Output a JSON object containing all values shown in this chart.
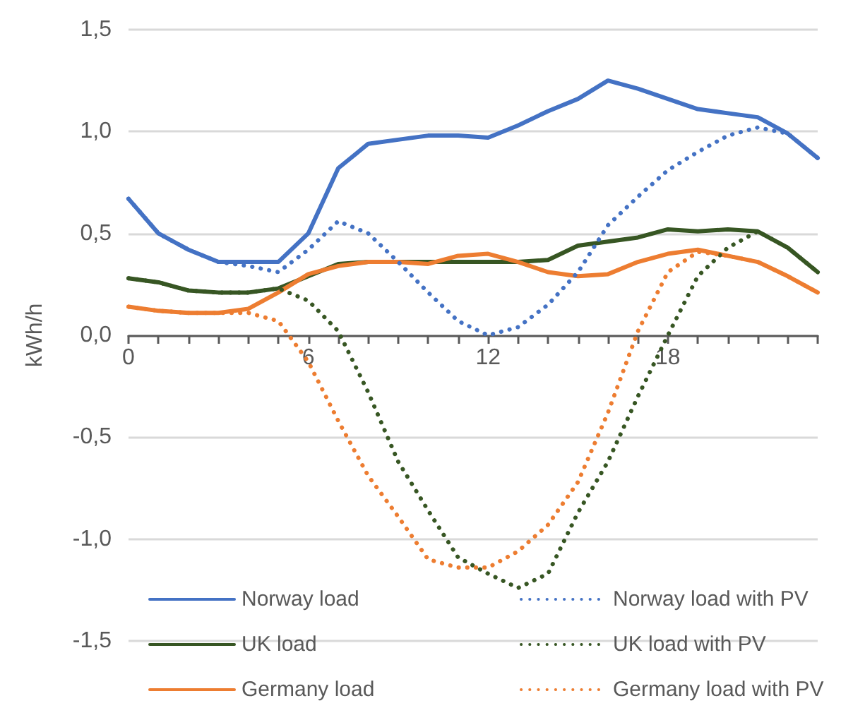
{
  "chart_data": {
    "type": "line",
    "ylabel": "kWh/h",
    "xlim": [
      0,
      23
    ],
    "xticks": [
      0,
      {
        "value": 1,
        "label": null
      },
      {
        "value": 2,
        "label": null
      },
      {
        "value": 3,
        "label": null
      },
      {
        "value": 4,
        "label": null
      },
      {
        "value": 5,
        "label": null
      },
      6,
      {
        "value": 7,
        "label": null
      },
      {
        "value": 8,
        "label": null
      },
      {
        "value": 9,
        "label": null
      },
      {
        "value": 10,
        "label": null
      },
      {
        "value": 11,
        "label": null
      },
      12,
      {
        "value": 13,
        "label": null
      },
      {
        "value": 14,
        "label": null
      },
      {
        "value": 15,
        "label": null
      },
      {
        "value": 16,
        "label": null
      },
      {
        "value": 17,
        "label": null
      },
      18,
      {
        "value": 19,
        "label": null
      },
      {
        "value": 20,
        "label": null
      },
      {
        "value": 21,
        "label": null
      },
      {
        "value": 22,
        "label": null
      },
      {
        "value": 23,
        "label": null
      }
    ],
    "x": [
      0,
      1,
      2,
      3,
      4,
      5,
      6,
      7,
      8,
      9,
      10,
      11,
      12,
      13,
      14,
      15,
      16,
      17,
      18,
      19,
      20,
      21,
      22,
      23
    ],
    "ylim": [
      -1.5,
      1.5
    ],
    "yticks": [
      {
        "value": -1.5,
        "label": "-1,5"
      },
      {
        "value": -1,
        "label": "-1,0"
      },
      {
        "value": -0.5,
        "label": "-0,5"
      },
      {
        "value": 0,
        "label": "0,0"
      },
      {
        "value": 0.5,
        "label": "0,5"
      },
      {
        "value": 1,
        "label": "1,0"
      },
      {
        "value": 1.5,
        "label": "1,5"
      }
    ],
    "grid": "y",
    "legend": "bottom",
    "marker": "none",
    "series": [
      {
        "name": "Norway load",
        "color": "#4472c4",
        "line_style": "solid",
        "values": [
          0.67,
          0.5,
          0.42,
          0.36,
          0.36,
          0.36,
          0.5,
          0.82,
          0.94,
          0.96,
          0.98,
          0.98,
          0.97,
          1.03,
          1.1,
          1.16,
          1.25,
          1.21,
          1.16,
          1.11,
          1.09,
          1.07,
          0.99,
          0.87
        ]
      },
      {
        "name": "Norway load with PV",
        "color": "#4472c4",
        "line_style": "dotted",
        "values": [
          0.67,
          0.5,
          0.42,
          0.36,
          0.34,
          0.31,
          0.42,
          0.56,
          0.5,
          0.36,
          0.21,
          0.07,
          0.0,
          0.04,
          0.15,
          0.31,
          0.54,
          0.68,
          0.81,
          0.9,
          0.98,
          1.02,
          0.99,
          0.87
        ]
      },
      {
        "name": "UK load",
        "color": "#375623",
        "line_style": "solid",
        "values": [
          0.28,
          0.26,
          0.22,
          0.21,
          0.21,
          0.23,
          0.29,
          0.35,
          0.36,
          0.36,
          0.36,
          0.36,
          0.36,
          0.36,
          0.37,
          0.44,
          0.46,
          0.48,
          0.52,
          0.51,
          0.52,
          0.51,
          0.43,
          0.31
        ]
      },
      {
        "name": "UK load with PV",
        "color": "#375623",
        "line_style": "dotted",
        "values": [
          0.28,
          0.26,
          0.22,
          0.21,
          0.21,
          0.23,
          0.17,
          0.02,
          -0.28,
          -0.62,
          -0.86,
          -1.09,
          -1.17,
          -1.24,
          -1.17,
          -0.87,
          -0.62,
          -0.3,
          0.0,
          0.29,
          0.43,
          0.51,
          0.43,
          0.31
        ]
      },
      {
        "name": "Germany load",
        "color": "#ed7d31",
        "line_style": "solid",
        "values": [
          0.14,
          0.12,
          0.11,
          0.11,
          0.13,
          0.21,
          0.3,
          0.34,
          0.36,
          0.36,
          0.35,
          0.39,
          0.4,
          0.36,
          0.31,
          0.29,
          0.3,
          0.36,
          0.4,
          0.42,
          0.39,
          0.36,
          0.29,
          0.21
        ]
      },
      {
        "name": "Germany load with PV",
        "color": "#ed7d31",
        "line_style": "dotted",
        "values": [
          0.14,
          0.12,
          0.11,
          0.11,
          0.11,
          0.07,
          -0.13,
          -0.42,
          -0.69,
          -0.89,
          -1.1,
          -1.14,
          -1.14,
          -1.06,
          -0.93,
          -0.72,
          -0.38,
          0.02,
          0.31,
          0.41,
          0.39,
          0.36,
          0.29,
          0.21
        ]
      }
    ]
  }
}
